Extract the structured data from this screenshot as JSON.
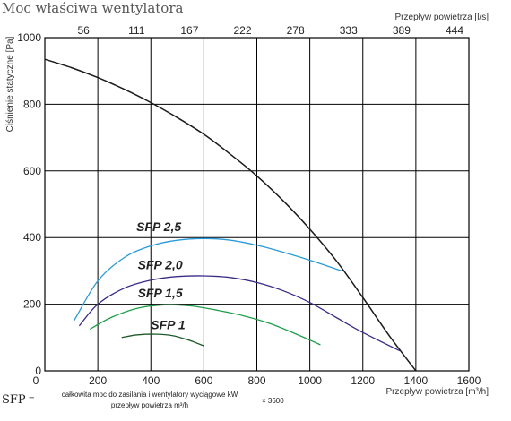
{
  "chart_data": {
    "type": "line",
    "title": "Moc właściwa wentylatora",
    "xlabel": "Przepływ powietrza [m³/h]",
    "ylabel": "Ciśnienie statyczne [Pa]",
    "x2label": "Przepływ powietrza [l/s]",
    "xlim": [
      0,
      1600
    ],
    "ylim": [
      0,
      1000
    ],
    "x_ticks": [
      0,
      200,
      400,
      600,
      800,
      1000,
      1200,
      1400,
      1600
    ],
    "y_ticks": [
      0,
      200,
      400,
      600,
      800,
      1000
    ],
    "x_tick_labels": [
      "0",
      "200",
      "400",
      "600",
      "800",
      "1000",
      "1200",
      "1400",
      "1600"
    ],
    "y_tick_labels": [
      "0",
      "200",
      "400",
      "600",
      "800",
      "1000"
    ],
    "x2_ticks": [
      {
        "label": "56",
        "value": 200
      },
      {
        "label": "111",
        "value": 400
      },
      {
        "label": "167",
        "value": 600
      },
      {
        "label": "222",
        "value": 800
      },
      {
        "label": "278",
        "value": 1000
      },
      {
        "label": "333",
        "value": 1200
      },
      {
        "label": "389",
        "value": 1400
      },
      {
        "label": "444",
        "value": 1600
      }
    ],
    "grid": true,
    "series": [
      {
        "id": "fan",
        "color": "#1a1a1a",
        "x": [
          0,
          100,
          200,
          300,
          400,
          500,
          600,
          700,
          800,
          900,
          1000,
          1100,
          1200,
          1300,
          1400
        ],
        "y": [
          935,
          910,
          880,
          845,
          805,
          760,
          710,
          650,
          585,
          510,
          425,
          330,
          220,
          105,
          0
        ]
      },
      {
        "name": "SFP 2,5",
        "color": "#2a9ad6",
        "x": [
          110,
          200,
          300,
          400,
          500,
          600,
          700,
          800,
          900,
          1000,
          1120
        ],
        "y": [
          150,
          270,
          340,
          375,
          392,
          397,
          392,
          377,
          356,
          332,
          300
        ]
      },
      {
        "name": "SFP 2,0",
        "color": "#3b2a86",
        "x": [
          130,
          200,
          300,
          400,
          500,
          600,
          700,
          800,
          900,
          1000,
          1100,
          1200,
          1340
        ],
        "y": [
          135,
          200,
          248,
          272,
          283,
          285,
          280,
          265,
          240,
          205,
          160,
          115,
          60
        ]
      },
      {
        "name": "SFP 1,5",
        "color": "#1f9e4a",
        "x": [
          170,
          250,
          350,
          450,
          550,
          650,
          750,
          850,
          950,
          1040
        ],
        "y": [
          125,
          160,
          188,
          198,
          195,
          182,
          165,
          142,
          110,
          78
        ]
      },
      {
        "name": "SFP 1",
        "color": "#1d5a2a",
        "x": [
          290,
          350,
          420,
          480,
          540,
          600
        ],
        "y": [
          100,
          108,
          110,
          106,
          93,
          75
        ]
      }
    ],
    "annotations": [
      {
        "text": "SFP 2,5",
        "x": 430,
        "y": 420
      },
      {
        "text": "SFP 2,0",
        "x": 435,
        "y": 305
      },
      {
        "text": "SFP 1,5",
        "x": 435,
        "y": 220
      },
      {
        "text": "SFP 1",
        "x": 465,
        "y": 125
      }
    ]
  },
  "formula": {
    "lhs": "SFP",
    "eq": "=",
    "numerator": "całkowita moc do zasilania i wentylatory wyciągowe kW",
    "denominator": "przepływ powietrza m³/h",
    "multiplier": "× 3600"
  }
}
